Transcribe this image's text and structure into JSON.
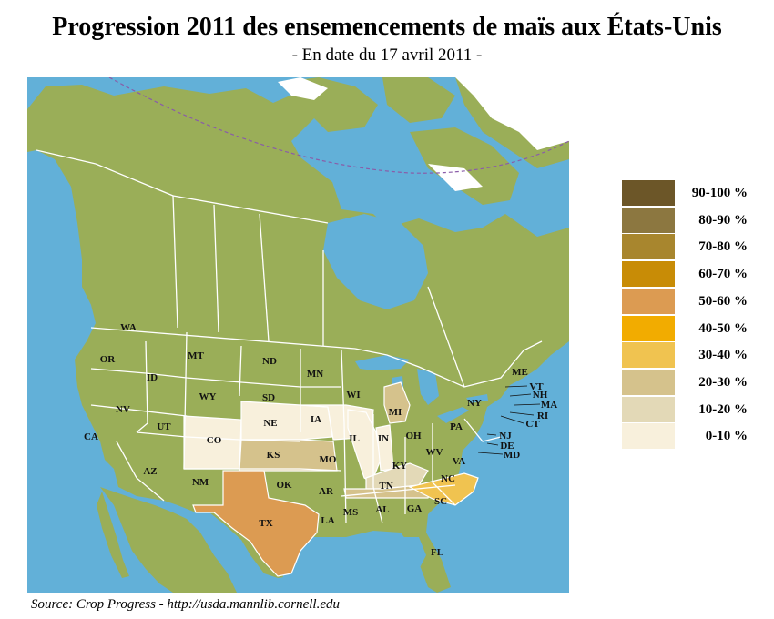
{
  "title": "Progression 2011 des ensemencements de maïs aux États-Unis",
  "subtitle": "- En date du 17 avril 2011 -",
  "source": "Source: Crop Progress - http://usda.mannlib.cornell.edu",
  "colors": {
    "ocean": "#62b0d8",
    "land": "#9aae58",
    "border": "#ffffff",
    "ice": "#ffffff",
    "circle_line": "#8a5ca8"
  },
  "legend": [
    {
      "label": "90-100 %",
      "color": "#6c5628"
    },
    {
      "label": "80-90 %",
      "color": "#8c7740"
    },
    {
      "label": "70-80 %",
      "color": "#a8862e"
    },
    {
      "label": "60-70 %",
      "color": "#c88c06"
    },
    {
      "label": "50-60 %",
      "color": "#dc9b52"
    },
    {
      "label": "40-50 %",
      "color": "#f2ac00"
    },
    {
      "label": "30-40 %",
      "color": "#f0c350"
    },
    {
      "label": "20-30 %",
      "color": "#d5c28c"
    },
    {
      "label": "10-20 %",
      "color": "#e3d9b7"
    },
    {
      "label": "0-10 %",
      "color": "#f8f0dc"
    }
  ],
  "states": [
    {
      "abbr": "WA",
      "range": null
    },
    {
      "abbr": "OR",
      "range": null
    },
    {
      "abbr": "CA",
      "range": null
    },
    {
      "abbr": "NV",
      "range": null
    },
    {
      "abbr": "ID",
      "range": null
    },
    {
      "abbr": "MT",
      "range": null
    },
    {
      "abbr": "WY",
      "range": null
    },
    {
      "abbr": "UT",
      "range": null
    },
    {
      "abbr": "AZ",
      "range": null
    },
    {
      "abbr": "CO",
      "range": "0-10 %"
    },
    {
      "abbr": "NM",
      "range": null
    },
    {
      "abbr": "ND",
      "range": null
    },
    {
      "abbr": "SD",
      "range": null
    },
    {
      "abbr": "NE",
      "range": "0-10 %"
    },
    {
      "abbr": "KS",
      "range": "20-30 %"
    },
    {
      "abbr": "OK",
      "range": null
    },
    {
      "abbr": "TX",
      "range": "50-60 %"
    },
    {
      "abbr": "MN",
      "range": null
    },
    {
      "abbr": "IA",
      "range": "0-10 %"
    },
    {
      "abbr": "MO",
      "range": null
    },
    {
      "abbr": "AR",
      "range": null
    },
    {
      "abbr": "LA",
      "range": null
    },
    {
      "abbr": "WI",
      "range": null
    },
    {
      "abbr": "IL",
      "range": "0-10 %"
    },
    {
      "abbr": "IN",
      "range": "0-10 %"
    },
    {
      "abbr": "MI",
      "range": "20-30 %"
    },
    {
      "abbr": "OH",
      "range": null
    },
    {
      "abbr": "KY",
      "range": "10-20 %"
    },
    {
      "abbr": "TN",
      "range": "20-30 %"
    },
    {
      "abbr": "MS",
      "range": null
    },
    {
      "abbr": "AL",
      "range": null
    },
    {
      "abbr": "GA",
      "range": null
    },
    {
      "abbr": "FL",
      "range": null
    },
    {
      "abbr": "SC",
      "range": null
    },
    {
      "abbr": "NC",
      "range": "30-40 %"
    },
    {
      "abbr": "VA",
      "range": null
    },
    {
      "abbr": "WV",
      "range": null
    },
    {
      "abbr": "PA",
      "range": null
    },
    {
      "abbr": "NY",
      "range": null
    },
    {
      "abbr": "ME",
      "range": null
    },
    {
      "abbr": "VT",
      "range": null
    },
    {
      "abbr": "NH",
      "range": null
    },
    {
      "abbr": "MA",
      "range": null
    },
    {
      "abbr": "RI",
      "range": null
    },
    {
      "abbr": "CT",
      "range": null
    },
    {
      "abbr": "NJ",
      "range": null
    },
    {
      "abbr": "DE",
      "range": null
    },
    {
      "abbr": "MD",
      "range": null
    }
  ]
}
